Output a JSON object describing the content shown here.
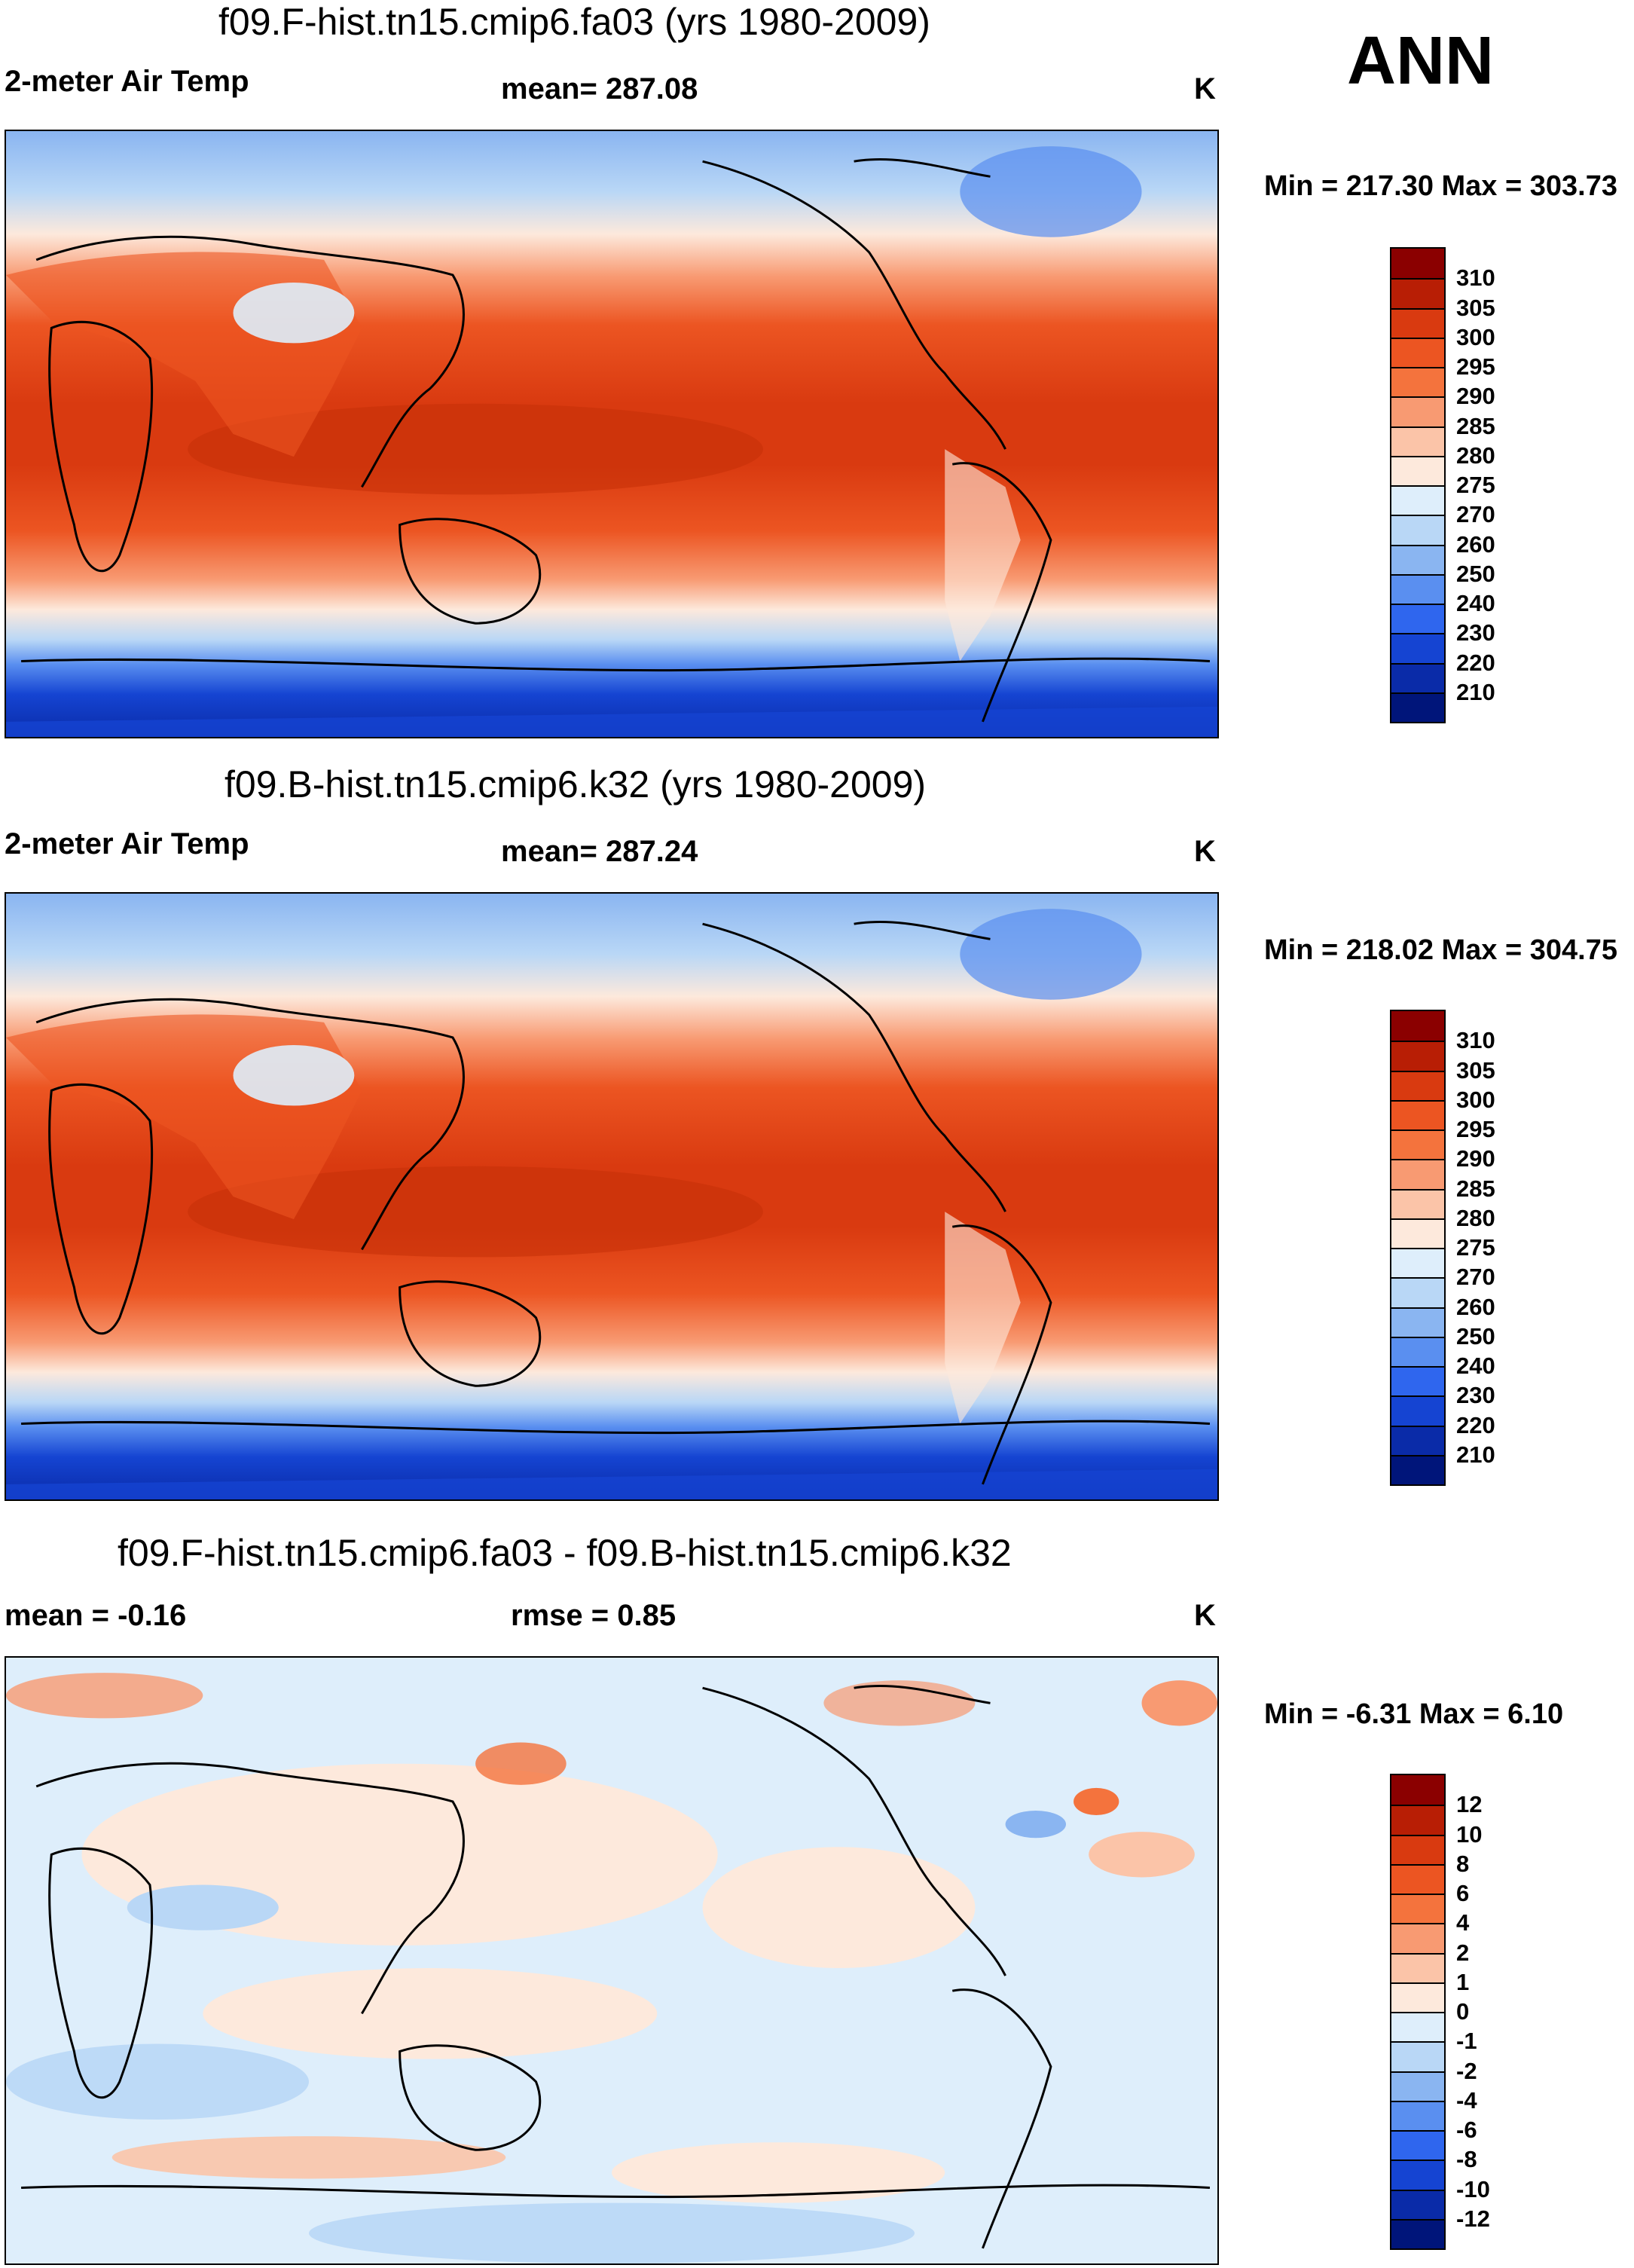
{
  "season": "ANN",
  "panels": [
    {
      "id": "model-a",
      "title": "f09.F-hist.tn15.cmip6.fa03 (yrs 1980-2009)",
      "variable_label": "2-meter Air Temp",
      "stat_label": "mean= 287.08",
      "units": "K",
      "minmax": "Min = 217.30 Max = 303.73"
    },
    {
      "id": "model-b",
      "title": "f09.B-hist.tn15.cmip6.k32 (yrs 1980-2009)",
      "variable_label": "2-meter Air Temp",
      "stat_label": "mean= 287.24",
      "units": "K",
      "minmax": "Min = 218.02 Max = 304.75"
    },
    {
      "id": "difference",
      "title": "f09.F-hist.tn15.cmip6.fa03 - f09.B-hist.tn15.cmip6.k32",
      "variable_label": "mean =  -0.16",
      "stat_label": "rmse =   0.85",
      "units": "K",
      "minmax": "Min =  -6.31 Max =   6.10"
    }
  ],
  "colorbars": {
    "temperature": {
      "levels": [
        "310",
        "305",
        "300",
        "295",
        "290",
        "285",
        "280",
        "275",
        "270",
        "260",
        "250",
        "240",
        "230",
        "220",
        "210"
      ],
      "colors": [
        "#8b0000",
        "#b81e05",
        "#d93a10",
        "#ec5522",
        "#f4733d",
        "#f89a72",
        "#fbc4a8",
        "#fde9dc",
        "#deeefb",
        "#b9d7f6",
        "#8ab5f1",
        "#5a8ff0",
        "#2f66ee",
        "#1544d2",
        "#0a2ba8",
        "#00157a"
      ]
    },
    "difference": {
      "levels": [
        "12",
        "10",
        "8",
        "6",
        "4",
        "2",
        "1",
        "0",
        "-1",
        "-2",
        "-4",
        "-6",
        "-8",
        "-10",
        "-12"
      ],
      "colors": [
        "#8b0000",
        "#b81e05",
        "#d93a10",
        "#ec5522",
        "#f4733d",
        "#f89a72",
        "#fbc4a8",
        "#fde9dc",
        "#deeefb",
        "#b9d7f6",
        "#8ab5f1",
        "#5a8ff0",
        "#2f66ee",
        "#1544d2",
        "#0a2ba8",
        "#00157a"
      ]
    }
  }
}
